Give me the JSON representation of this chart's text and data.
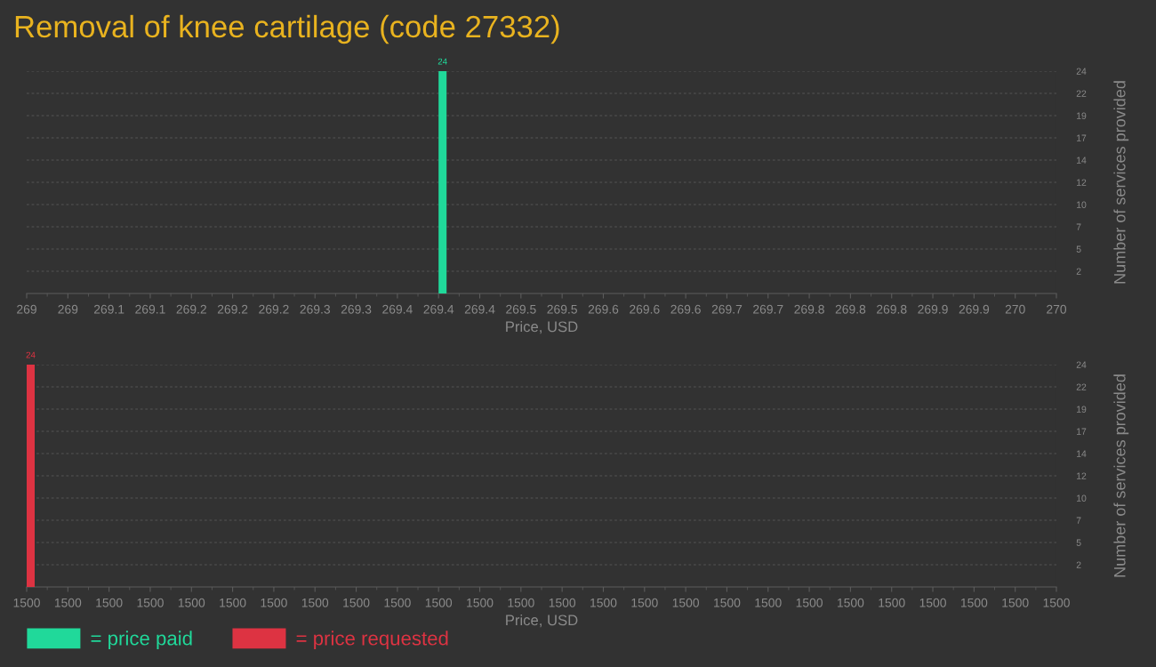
{
  "chart_data": [
    {
      "type": "bar",
      "title": "Removal of knee cartilage (code 27332)",
      "xlabel": "Price, USD",
      "ylabel": "Number of services provided",
      "x": [
        269.4
      ],
      "series": [
        {
          "name": "= price paid",
          "color": "#20d99a",
          "values": [
            24
          ]
        }
      ],
      "xlim": [
        269,
        270
      ],
      "xticks": [
        269,
        {
          "value": 269.04,
          "label": "269"
        },
        {
          "value": 269.08,
          "label": "269.1"
        },
        {
          "value": 269.12,
          "label": "269.1"
        },
        {
          "value": 269.16,
          "label": "269.2"
        },
        269.2,
        {
          "value": 269.24,
          "label": "269.2"
        },
        {
          "value": 269.28,
          "label": "269.3"
        },
        {
          "value": 269.32,
          "label": "269.3"
        },
        {
          "value": 269.36,
          "label": "269.4"
        },
        269.4,
        {
          "value": 269.44,
          "label": "269.4"
        },
        {
          "value": 269.48,
          "label": "269.5"
        },
        {
          "value": 269.52,
          "label": "269.5"
        },
        {
          "value": 269.56,
          "label": "269.6"
        },
        269.6,
        {
          "value": 269.64,
          "label": "269.6"
        },
        {
          "value": 269.68,
          "label": "269.7"
        },
        {
          "value": 269.72,
          "label": "269.7"
        },
        {
          "value": 269.76,
          "label": "269.8"
        },
        269.8,
        {
          "value": 269.84,
          "label": "269.8"
        },
        {
          "value": 269.88,
          "label": "269.9"
        },
        {
          "value": 269.92,
          "label": "269.9"
        },
        {
          "value": 269.96,
          "label": "270"
        },
        270
      ],
      "ylim": [
        0,
        24
      ],
      "yticks": [
        {
          "value": 2.4,
          "label": "2"
        },
        {
          "value": 4.8,
          "label": "5"
        },
        {
          "value": 7.2,
          "label": "7"
        },
        {
          "value": 9.6,
          "label": "10"
        },
        12,
        {
          "value": 14.4,
          "label": "14"
        },
        {
          "value": 16.8,
          "label": "17"
        },
        {
          "value": 19.2,
          "label": "19"
        },
        {
          "value": 21.6,
          "label": "22"
        },
        24
      ],
      "grid": "y",
      "data_labels": true,
      "legend": "bottom left"
    },
    {
      "type": "bar",
      "xlabel": "Price, USD",
      "ylabel": "Number of services provided",
      "categories": [
        "1500",
        "1500",
        "1500",
        "1500",
        "1500",
        "1500",
        "1500",
        "1500",
        "1500",
        "1500",
        "1500",
        "1500",
        "1500",
        "1500",
        "1500",
        "1500",
        "1500",
        "1500",
        "1500",
        "1500",
        "1500",
        "1500",
        "1500",
        "1500",
        "1500",
        "1500"
      ],
      "series": [
        {
          "name": "= price requested",
          "color": "#dd3342",
          "values": [
            24,
            null,
            null,
            null,
            null,
            null,
            null,
            null,
            null,
            null,
            null,
            null,
            null,
            null,
            null,
            null,
            null,
            null,
            null,
            null,
            null,
            null,
            null,
            null,
            null,
            null
          ]
        }
      ],
      "ylim": [
        0,
        24
      ],
      "yticks": [
        {
          "value": 2.4,
          "label": "2"
        },
        {
          "value": 4.8,
          "label": "5"
        },
        {
          "value": 7.2,
          "label": "7"
        },
        {
          "value": 9.6,
          "label": "10"
        },
        12,
        {
          "value": 14.4,
          "label": "14"
        },
        {
          "value": 16.8,
          "label": "17"
        },
        {
          "value": 19.2,
          "label": "19"
        },
        {
          "value": 21.6,
          "label": "22"
        },
        24
      ],
      "grid": "y",
      "data_labels": true,
      "legend": "bottom left"
    }
  ]
}
